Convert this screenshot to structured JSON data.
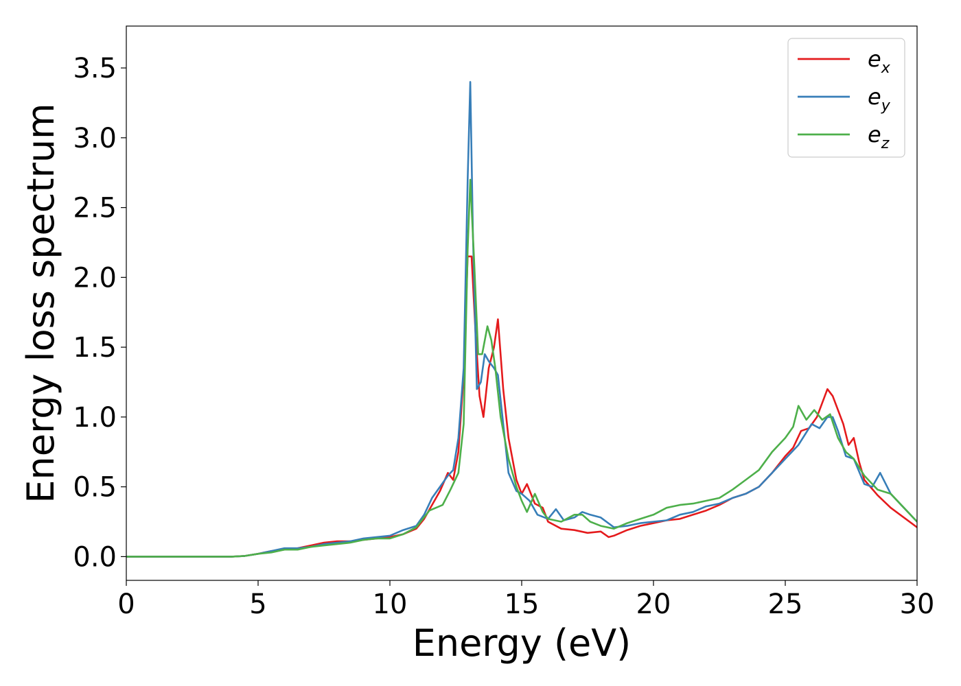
{
  "chart_data": {
    "type": "line",
    "title": "",
    "xlabel": "Energy (eV)",
    "ylabel": "Energy loss spectrum",
    "xlim": [
      0,
      30
    ],
    "ylim": [
      -0.17,
      3.8
    ],
    "xticks": [
      0,
      5,
      10,
      15,
      20,
      25,
      30
    ],
    "xtick_labels": [
      "0",
      "5",
      "10",
      "15",
      "20",
      "25",
      "30"
    ],
    "yticks": [
      0.0,
      0.5,
      1.0,
      1.5,
      2.0,
      2.5,
      3.0,
      3.5
    ],
    "ytick_labels": [
      "0.0",
      "0.5",
      "1.0",
      "1.5",
      "2.0",
      "2.5",
      "3.0",
      "3.5"
    ],
    "grid": false,
    "legend_position": "top-right",
    "series": [
      {
        "name": "e",
        "subscript": "x",
        "color": "#e41a1c",
        "x": [
          0,
          2,
          4,
          4.5,
          5,
          5.5,
          6,
          6.5,
          7,
          7.5,
          8,
          8.5,
          9,
          9.5,
          10,
          10.5,
          11,
          11.3,
          11.6,
          11.9,
          12.2,
          12.4,
          12.6,
          12.8,
          12.95,
          13.1,
          13.25,
          13.4,
          13.55,
          13.75,
          13.95,
          14.1,
          14.3,
          14.5,
          14.8,
          15.0,
          15.2,
          15.5,
          15.8,
          16.0,
          16.5,
          17.0,
          17.5,
          18.0,
          18.3,
          18.5,
          19.0,
          19.5,
          20.0,
          20.5,
          21.0,
          21.5,
          22.0,
          22.5,
          23.0,
          23.5,
          24.0,
          24.5,
          25.0,
          25.3,
          25.6,
          25.9,
          26.2,
          26.5,
          26.6,
          26.8,
          27.0,
          27.2,
          27.4,
          27.6,
          27.8,
          28.0,
          28.5,
          29.0,
          29.5,
          30.0
        ],
        "values": [
          0.0,
          0.0,
          0.0,
          0.005,
          0.02,
          0.04,
          0.05,
          0.06,
          0.08,
          0.1,
          0.11,
          0.11,
          0.12,
          0.13,
          0.14,
          0.16,
          0.2,
          0.27,
          0.37,
          0.47,
          0.6,
          0.55,
          0.75,
          1.3,
          2.15,
          2.15,
          1.6,
          1.15,
          1.0,
          1.35,
          1.5,
          1.7,
          1.2,
          0.85,
          0.55,
          0.45,
          0.52,
          0.38,
          0.35,
          0.25,
          0.2,
          0.19,
          0.17,
          0.18,
          0.14,
          0.15,
          0.19,
          0.22,
          0.24,
          0.26,
          0.27,
          0.3,
          0.33,
          0.37,
          0.42,
          0.45,
          0.5,
          0.6,
          0.72,
          0.78,
          0.9,
          0.92,
          1.0,
          1.15,
          1.2,
          1.15,
          1.05,
          0.95,
          0.8,
          0.85,
          0.68,
          0.55,
          0.44,
          0.35,
          0.28,
          0.21
        ]
      },
      {
        "name": "e",
        "subscript": "y",
        "color": "#377eb8",
        "x": [
          0,
          2,
          4,
          4.5,
          5,
          5.5,
          6,
          6.5,
          7,
          7.5,
          8,
          8.5,
          9,
          9.5,
          10,
          10.5,
          11,
          11.3,
          11.6,
          11.9,
          12.2,
          12.4,
          12.6,
          12.8,
          12.95,
          13.05,
          13.15,
          13.3,
          13.45,
          13.6,
          13.75,
          13.95,
          14.1,
          14.3,
          14.5,
          14.8,
          15.0,
          15.3,
          15.6,
          16.0,
          16.3,
          16.6,
          17.0,
          17.3,
          17.6,
          18.0,
          18.5,
          19.0,
          19.5,
          20.0,
          20.5,
          21.0,
          21.5,
          22.0,
          22.5,
          23.0,
          23.5,
          24.0,
          24.5,
          25.0,
          25.5,
          26.0,
          26.3,
          26.6,
          26.8,
          27.0,
          27.3,
          27.6,
          28.0,
          28.3,
          28.6,
          29.0,
          29.5,
          30.0
        ],
        "values": [
          0.0,
          0.0,
          0.0,
          0.005,
          0.02,
          0.04,
          0.06,
          0.06,
          0.07,
          0.09,
          0.1,
          0.11,
          0.13,
          0.14,
          0.15,
          0.19,
          0.22,
          0.3,
          0.42,
          0.5,
          0.58,
          0.62,
          0.85,
          1.35,
          2.7,
          3.4,
          2.3,
          1.2,
          1.25,
          1.45,
          1.4,
          1.35,
          1.3,
          0.95,
          0.6,
          0.47,
          0.45,
          0.4,
          0.3,
          0.27,
          0.34,
          0.26,
          0.28,
          0.32,
          0.3,
          0.28,
          0.21,
          0.22,
          0.24,
          0.25,
          0.26,
          0.3,
          0.32,
          0.36,
          0.38,
          0.42,
          0.45,
          0.5,
          0.6,
          0.7,
          0.8,
          0.95,
          0.92,
          1.0,
          1.0,
          0.9,
          0.72,
          0.7,
          0.52,
          0.5,
          0.6,
          0.45,
          0.35,
          0.25
        ]
      },
      {
        "name": "e",
        "subscript": "z",
        "color": "#4daf4a",
        "x": [
          0,
          2,
          4,
          4.5,
          5,
          5.5,
          6,
          6.5,
          7,
          7.5,
          8,
          8.5,
          9,
          9.5,
          10,
          10.5,
          11,
          11.5,
          12.0,
          12.3,
          12.6,
          12.8,
          12.95,
          13.05,
          13.2,
          13.35,
          13.5,
          13.7,
          13.85,
          14.0,
          14.2,
          14.5,
          14.8,
          15.0,
          15.2,
          15.5,
          15.8,
          16.0,
          16.5,
          17.0,
          17.3,
          17.6,
          18.0,
          18.5,
          19.0,
          19.5,
          20.0,
          20.5,
          21.0,
          21.5,
          22.0,
          22.5,
          23.0,
          23.5,
          24.0,
          24.5,
          25.0,
          25.3,
          25.5,
          25.8,
          26.1,
          26.4,
          26.7,
          27.0,
          27.3,
          27.6,
          28.0,
          28.5,
          29.0,
          29.5,
          30.0
        ],
        "values": [
          0.0,
          0.0,
          0.0,
          0.005,
          0.02,
          0.03,
          0.05,
          0.05,
          0.07,
          0.08,
          0.09,
          0.1,
          0.12,
          0.13,
          0.13,
          0.16,
          0.21,
          0.33,
          0.37,
          0.48,
          0.6,
          0.95,
          2.2,
          2.7,
          2.1,
          1.45,
          1.45,
          1.65,
          1.55,
          1.35,
          1.0,
          0.7,
          0.5,
          0.4,
          0.32,
          0.45,
          0.32,
          0.27,
          0.25,
          0.3,
          0.3,
          0.25,
          0.22,
          0.2,
          0.24,
          0.27,
          0.3,
          0.35,
          0.37,
          0.38,
          0.4,
          0.42,
          0.48,
          0.55,
          0.62,
          0.75,
          0.85,
          0.93,
          1.08,
          0.98,
          1.05,
          0.98,
          1.02,
          0.85,
          0.75,
          0.7,
          0.58,
          0.48,
          0.45,
          0.35,
          0.25
        ]
      }
    ]
  }
}
